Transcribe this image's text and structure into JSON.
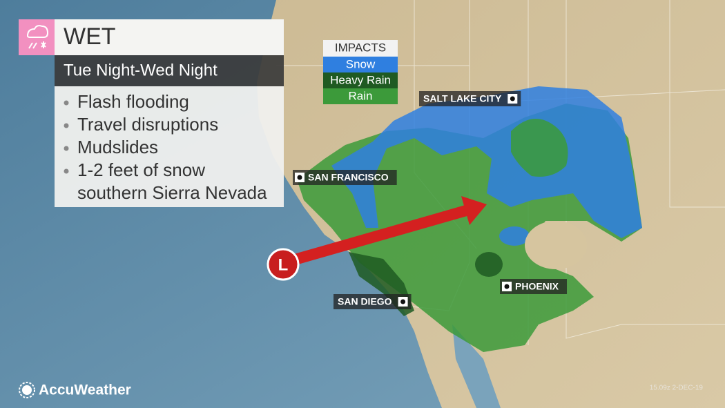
{
  "header": {
    "title": "WET",
    "subtitle": "Tue Night-Wed Night"
  },
  "bullets": [
    [
      "Flash flooding"
    ],
    [
      "Travel disruptions"
    ],
    [
      "Mudslides"
    ],
    [
      "1-2 feet of snow",
      "southern Sierra Nevada"
    ]
  ],
  "legend": {
    "title": "IMPACTS",
    "items": [
      {
        "label": "Snow",
        "color": "#2f7fe0"
      },
      {
        "label": "Heavy Rain",
        "color": "#1f5a22"
      },
      {
        "label": "Rain",
        "color": "#3c9a3a"
      }
    ]
  },
  "cities": [
    "SALT LAKE CITY",
    "SAN FRANCISCO",
    "PHOENIX",
    "SAN DIEGO"
  ],
  "low_marker": "L",
  "brand": "AccuWeather",
  "timestamp": "15.09z 2-DEC-19"
}
